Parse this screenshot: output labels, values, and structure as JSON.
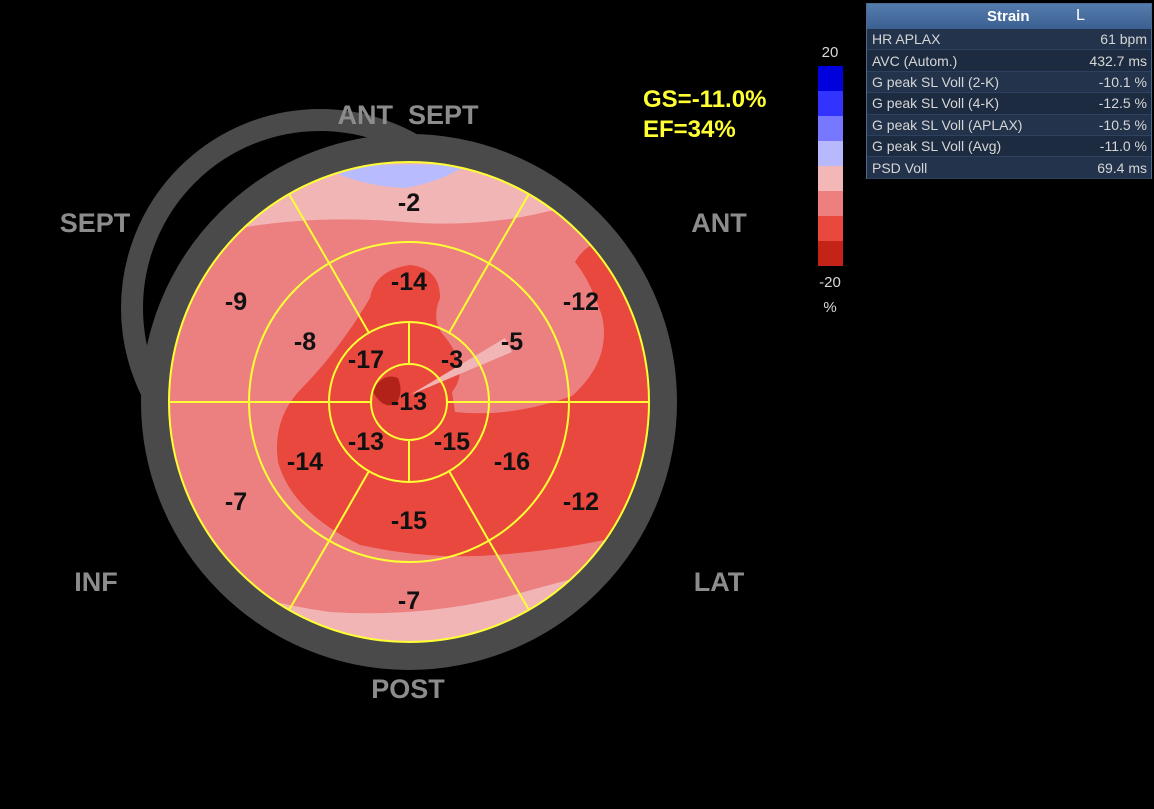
{
  "regions": {
    "ant_sept": "ANT  SEPT",
    "sept": "SEPT",
    "ant": "ANT",
    "inf": "INF",
    "lat": "LAT",
    "post": "POST"
  },
  "summary": {
    "gs": "GS=-11.0%",
    "ef": "EF=34%"
  },
  "segments": {
    "basal": [
      "-2",
      "-12",
      "-12",
      "-7",
      "-7",
      "-9"
    ],
    "mid": [
      "-14",
      "-5",
      "-16",
      "-15",
      "-14",
      "-8"
    ],
    "apical": [
      "-3",
      "-15",
      "-13",
      "-17"
    ],
    "apex": "-13"
  },
  "colorbar": {
    "max": "20",
    "min": "-20",
    "unit": "%",
    "colors": [
      "#0000dd",
      "#3333ff",
      "#7777ff",
      "#b8b8ff",
      "#f4b7b7",
      "#ed7f7f",
      "#e8483e",
      "#c42418"
    ]
  },
  "palette": {
    "ring": "#4a4a4a",
    "grid": "#ffff33",
    "strain_light": "#f2b5b5",
    "strain_mid": "#ec8080",
    "strain_strong": "#e8483e",
    "strain_dark": "#b32218",
    "positive_light": "#b8bcff"
  },
  "panel": {
    "title": "Strain",
    "tag": "L",
    "rows": [
      {
        "label": "HR APLAX",
        "value": "61 bpm"
      },
      {
        "label": "AVC (Autom.)",
        "value": "432.7 ms"
      },
      {
        "label": "G peak SL Voll (2-K)",
        "value": "-10.1 %"
      },
      {
        "label": "G peak SL Voll (4-K)",
        "value": "-12.5 %"
      },
      {
        "label": "G peak SL Voll (APLAX)",
        "value": "-10.5 %"
      },
      {
        "label": "G peak SL Voll (Avg)",
        "value": "-11.0 %"
      },
      {
        "label": "PSD Voll",
        "value": "69.4 ms"
      }
    ]
  }
}
